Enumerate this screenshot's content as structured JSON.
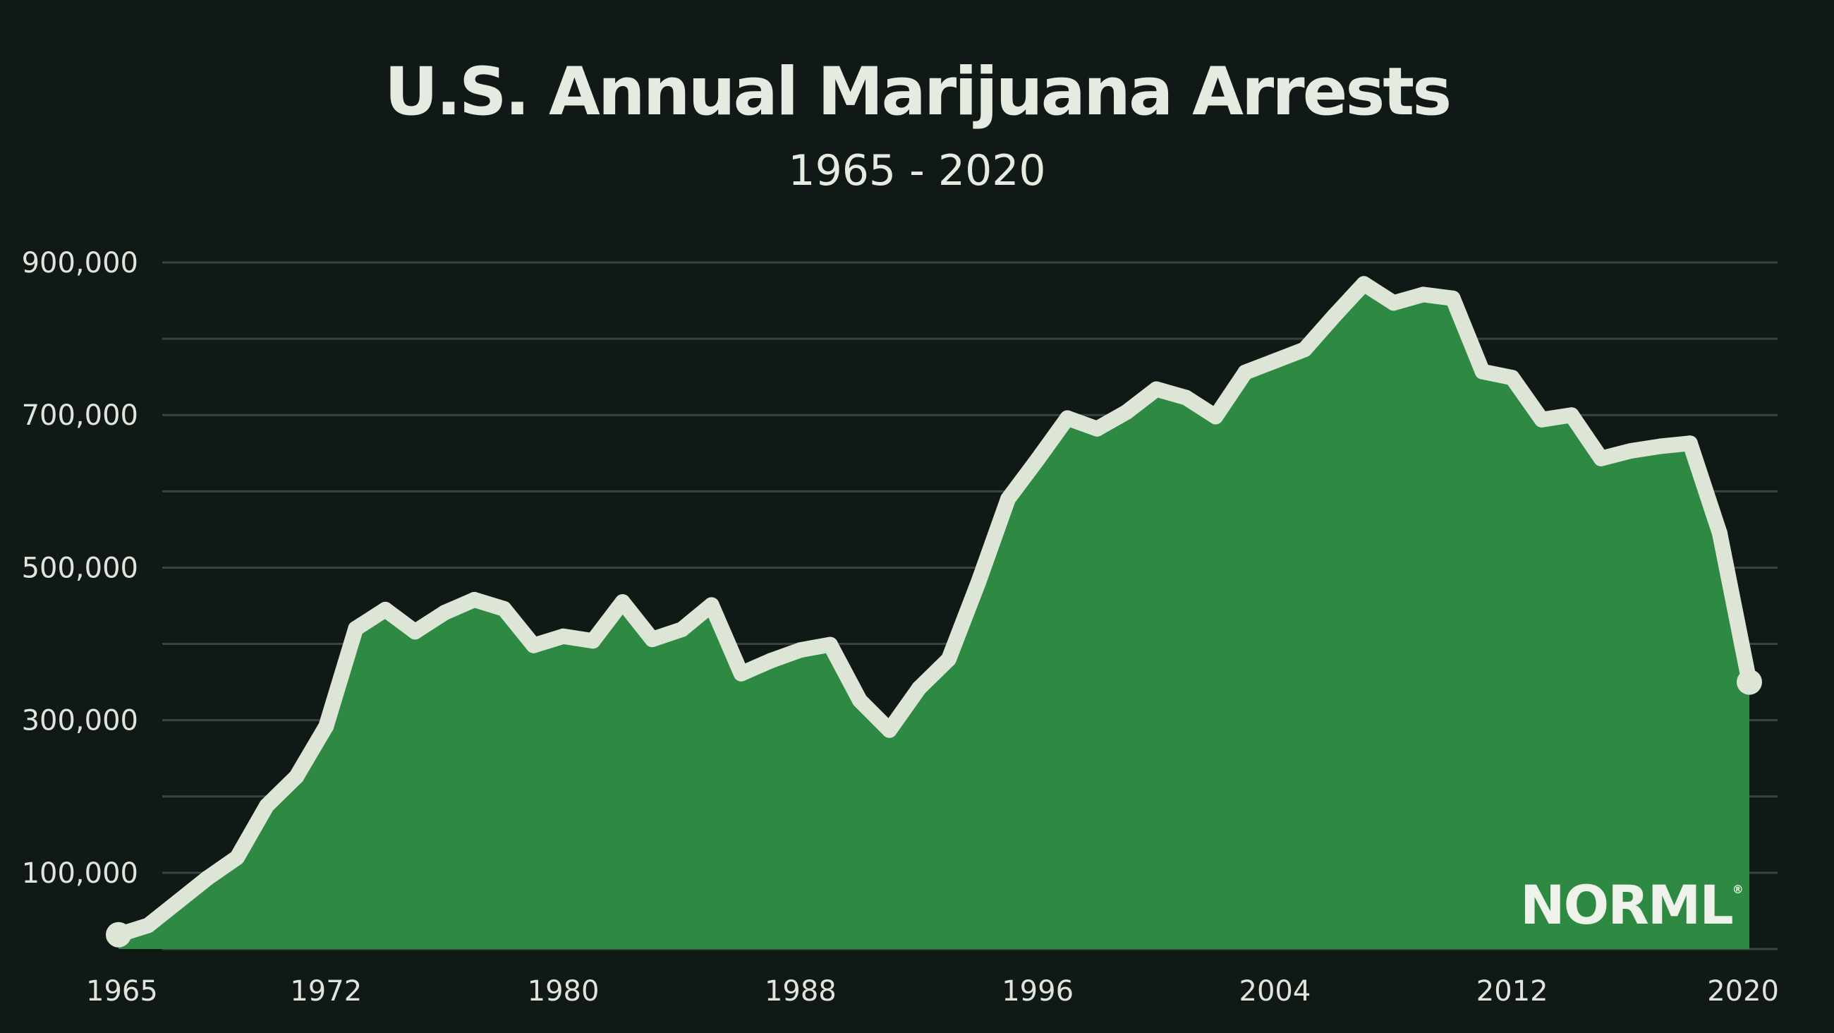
{
  "colors": {
    "background": "#111917",
    "area_fill": "#2e8a42",
    "line": "#dde6d6",
    "grid": "#3a4340",
    "text": "#e6ebe1"
  },
  "logo_text": "NORML",
  "chart_data": {
    "type": "area",
    "title": "U.S. Annual Marijuana Arrests",
    "subtitle": "1965 - 2020",
    "xlabel": "",
    "ylabel": "",
    "xlim": [
      1965,
      2020
    ],
    "ylim": [
      0,
      900000
    ],
    "grid": true,
    "legend": "none",
    "x_ticks": [
      1965,
      1972,
      1980,
      1988,
      1996,
      2004,
      2012,
      2020
    ],
    "y_ticks": [
      100000,
      300000,
      500000,
      700000,
      900000
    ],
    "y_tick_labels": [
      "100,000",
      "300,000",
      "500,000",
      "700,000",
      "900,000"
    ],
    "series": [
      {
        "x": [
          1965,
          1966,
          1967,
          1968,
          1969,
          1970,
          1971,
          1972,
          1973,
          1974,
          1975,
          1976,
          1977,
          1978,
          1979,
          1980,
          1981,
          1982,
          1983,
          1984,
          1985,
          1986,
          1987,
          1988,
          1989,
          1990,
          1991,
          1992,
          1993,
          1994,
          1995,
          1996,
          1997,
          1998,
          1999,
          2000,
          2001,
          2002,
          2003,
          2004,
          2005,
          2006,
          2007,
          2008,
          2009,
          2010,
          2011,
          2012,
          2013,
          2014,
          2015,
          2016,
          2017,
          2018,
          2019,
          2020
        ],
        "values": [
          18800,
          31000,
          62000,
          93000,
          120000,
          188000,
          226000,
          292000,
          420000,
          445000,
          416000,
          441000,
          458000,
          446000,
          398000,
          410000,
          404000,
          455000,
          406000,
          419000,
          451000,
          361000,
          378000,
          392000,
          399000,
          326000,
          287000,
          342000,
          380000,
          481000,
          590000,
          642000,
          696000,
          682000,
          704000,
          734000,
          723000,
          698000,
          756000,
          771000,
          786000,
          830000,
          872000,
          847000,
          858000,
          853000,
          757000,
          749000,
          694000,
          700000,
          643000,
          653000,
          659000,
          663000,
          545000,
          350000
        ]
      }
    ]
  }
}
